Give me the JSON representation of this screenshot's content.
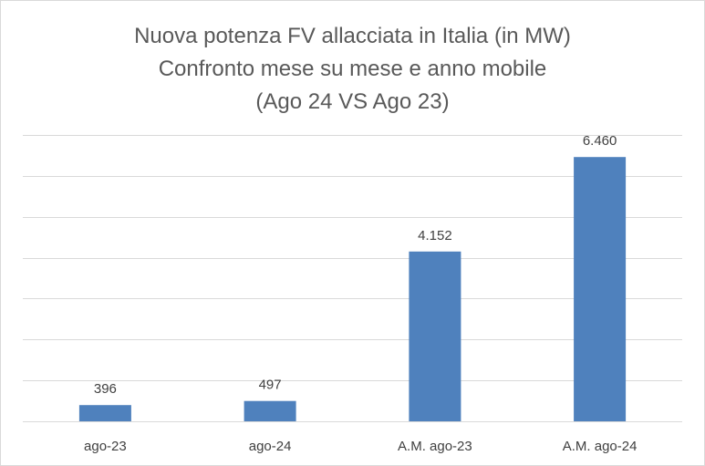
{
  "chart_data": {
    "type": "bar",
    "title_lines": [
      "Nuova potenza FV allacciata in Italia (in MW)",
      "Confronto mese su mese e anno mobile",
      "(Ago 24 VS Ago 23)"
    ],
    "categories": [
      "ago-23",
      "ago-24",
      "A.M. ago-23",
      "A.M. ago-24"
    ],
    "values": [
      396,
      497,
      4152,
      6460
    ],
    "data_labels": [
      "396",
      "497",
      "4.152",
      "6.460"
    ],
    "ylim": [
      0,
      7000
    ],
    "y_gridline_step": 1000,
    "grid": true,
    "legend": "none",
    "bar_color": "#4f81bd",
    "gridline_color": "#d9d9d9"
  }
}
